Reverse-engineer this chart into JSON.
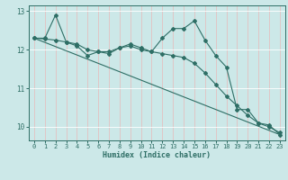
{
  "xlabel": "Humidex (Indice chaleur)",
  "bg_color": "#cce8e8",
  "grid_color_v": "#e8b8b8",
  "grid_color_h": "#ffffff",
  "line_color": "#2e6e65",
  "xlim": [
    -0.5,
    23.5
  ],
  "ylim": [
    9.65,
    13.15
  ],
  "yticks": [
    10,
    11,
    12,
    13
  ],
  "xticks": [
    0,
    1,
    2,
    3,
    4,
    5,
    6,
    7,
    8,
    9,
    10,
    11,
    12,
    13,
    14,
    15,
    16,
    17,
    18,
    19,
    20,
    21,
    22,
    23
  ],
  "line1_x": [
    0,
    1,
    2,
    3,
    4,
    5,
    6,
    7,
    8,
    9,
    10,
    11,
    12,
    13,
    14,
    15,
    16,
    17,
    18,
    19,
    20,
    21,
    22,
    23
  ],
  "line1_y": [
    12.3,
    12.3,
    12.9,
    12.2,
    12.1,
    11.85,
    11.95,
    11.95,
    12.05,
    12.15,
    12.05,
    11.95,
    12.3,
    12.55,
    12.55,
    12.75,
    12.25,
    11.85,
    11.55,
    10.45,
    10.45,
    10.1,
    10.05,
    9.8
  ],
  "line2_x": [
    0,
    1,
    2,
    3,
    4,
    5,
    6,
    7,
    8,
    9,
    10,
    11,
    12,
    13,
    14,
    15,
    16,
    17,
    18,
    19,
    20,
    21,
    22,
    23
  ],
  "line2_y": [
    12.3,
    12.28,
    12.25,
    12.2,
    12.15,
    12.0,
    11.95,
    11.9,
    12.05,
    12.1,
    12.0,
    11.95,
    11.9,
    11.85,
    11.8,
    11.65,
    11.4,
    11.1,
    10.8,
    10.55,
    10.3,
    10.1,
    10.0,
    9.85
  ],
  "line3_x": [
    0,
    23
  ],
  "line3_y": [
    12.3,
    9.8
  ]
}
